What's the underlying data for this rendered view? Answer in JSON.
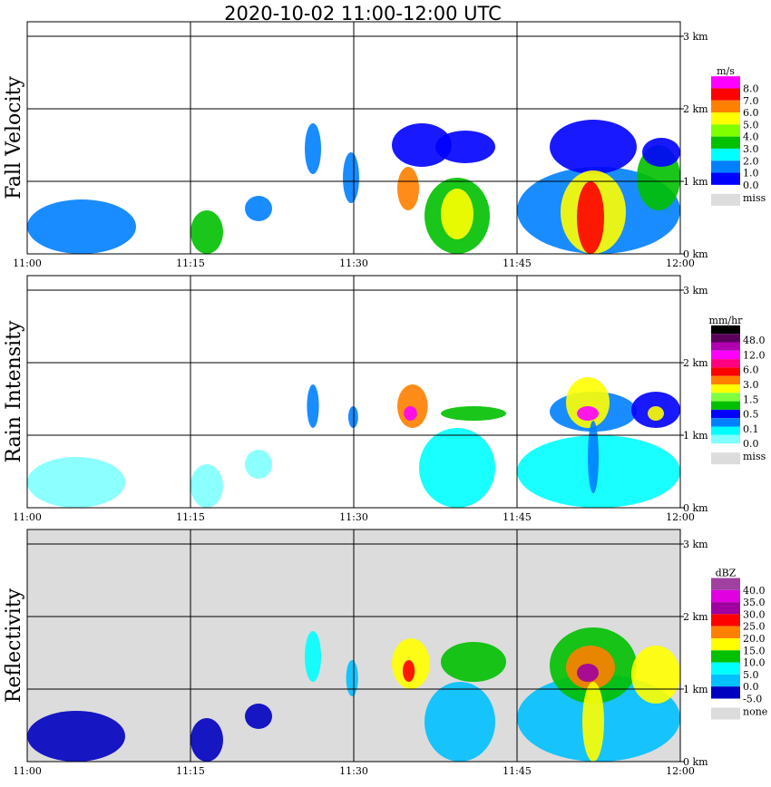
{
  "chart_data": {
    "type": "heatmap",
    "title": "2020-10-02   11:00-12:00 UTC",
    "x_ticks": [
      "11:00",
      "11:15",
      "11:30",
      "11:45",
      "12:00"
    ],
    "x_range_min": [
      0,
      60
    ],
    "y_ticks": [
      "0 km",
      "1 km",
      "2 km",
      "3 km"
    ],
    "y_range_km": [
      0,
      3.2
    ],
    "panels": [
      {
        "ylabel": "Fall Velocity",
        "unit": "m/s",
        "missing_label": "miss",
        "missing_color": "#dcdcdc",
        "background": "#ffffff",
        "levels": [
          "8.0",
          "7.0",
          "6.0",
          "5.0",
          "4.0",
          "3.0",
          "2.0",
          "1.0",
          "0.0"
        ],
        "thresholds": [
          8,
          7,
          6,
          5,
          4,
          3,
          2,
          1,
          0
        ],
        "colors": [
          "#ff00ff",
          "#ff0000",
          "#ff8000",
          "#ffff00",
          "#80ff00",
          "#00c000",
          "#00ffff",
          "#0080ff",
          "#0000ff"
        ],
        "cells": [
          [
            0,
            10,
            0,
            0.75,
            1.5
          ],
          [
            15,
            18,
            0,
            0.6,
            3
          ],
          [
            20,
            22.5,
            0.45,
            0.8,
            1.5
          ],
          [
            25.5,
            27,
            1.1,
            1.8,
            1.2
          ],
          [
            29,
            30.5,
            0.7,
            1.4,
            1.5
          ],
          [
            33.5,
            39,
            1.2,
            1.8,
            0.5
          ],
          [
            34,
            36,
            0.6,
            1.2,
            6.5
          ],
          [
            37.5,
            43,
            1.25,
            1.7,
            0.5
          ],
          [
            36.5,
            42.5,
            0,
            1.05,
            3.5
          ],
          [
            38,
            41,
            0.2,
            0.9,
            5.5
          ],
          [
            45,
            60,
            0,
            1.2,
            1.5
          ],
          [
            48,
            56,
            1.1,
            1.85,
            0.5
          ],
          [
            49,
            55,
            0,
            1.15,
            5.5
          ],
          [
            50.5,
            53,
            0,
            1,
            7.5
          ],
          [
            56,
            60,
            0.6,
            1.5,
            3.5
          ],
          [
            56.5,
            60,
            1.2,
            1.6,
            0.5
          ]
        ]
      },
      {
        "ylabel": "Rain Intensity",
        "unit": "mm/hr",
        "missing_label": "miss",
        "missing_color": "#dcdcdc",
        "background": "#ffffff",
        "levels": [
          "48.0",
          "12.0",
          "6.0",
          "3.0",
          "1.5",
          "0.5",
          "0.1",
          "0.0"
        ],
        "thresholds": [
          48,
          24,
          12,
          8,
          6,
          4,
          3,
          2,
          1.5,
          1,
          0.5,
          0.25,
          0.1,
          0
        ],
        "colors": [
          "#000000",
          "#5a005a",
          "#b000b0",
          "#ff00ff",
          "#ff0080",
          "#ff0000",
          "#ff8000",
          "#ffff00",
          "#80ff40",
          "#00c000",
          "#0000ff",
          "#0080ff",
          "#00ffff",
          "#80ffff"
        ],
        "cells": [
          [
            0,
            9,
            0,
            0.7,
            0.05
          ],
          [
            15,
            18,
            0,
            0.6,
            0.05
          ],
          [
            20,
            22.5,
            0.4,
            0.8,
            0.05
          ],
          [
            25.7,
            26.8,
            1.1,
            1.7,
            0.3
          ],
          [
            29.5,
            30.4,
            1.1,
            1.4,
            0.3
          ],
          [
            36,
            43,
            0,
            1.1,
            0.15
          ],
          [
            34,
            36.8,
            1.1,
            1.7,
            3
          ],
          [
            34.6,
            35.8,
            1.2,
            1.4,
            10
          ],
          [
            38,
            44,
            1.2,
            1.4,
            1
          ],
          [
            45,
            60,
            0,
            1.0,
            0.12
          ],
          [
            48,
            56,
            1.05,
            1.6,
            0.3
          ],
          [
            49.5,
            53.5,
            1.1,
            1.8,
            2
          ],
          [
            50.5,
            52.5,
            1.2,
            1.4,
            10
          ],
          [
            51.5,
            52.5,
            0.2,
            1.2,
            0.4
          ],
          [
            55.5,
            60,
            1.1,
            1.6,
            0.7
          ],
          [
            57,
            58.5,
            1.2,
            1.4,
            2.5
          ]
        ]
      },
      {
        "ylabel": "Reflectivity",
        "unit": "dBZ",
        "missing_label": "none",
        "missing_color": "#dcdcdc",
        "background": "#dcdcdc",
        "levels": [
          "40.0",
          "35.0",
          "30.0",
          "25.0",
          "20.0",
          "15.0",
          "10.0",
          "5.0",
          "0.0",
          "-5.0"
        ],
        "thresholds": [
          40,
          35,
          30,
          25,
          20,
          15,
          10,
          5,
          0,
          -5
        ],
        "colors": [
          "#a040a0",
          "#e000e0",
          "#a000a0",
          "#ff0000",
          "#ff8000",
          "#ffff00",
          "#00c000",
          "#00ffff",
          "#00c0ff",
          "#0000c0"
        ],
        "cells": [
          [
            0,
            9,
            0,
            0.7,
            -3
          ],
          [
            15,
            18,
            0,
            0.6,
            -3
          ],
          [
            20,
            22.5,
            0.45,
            0.8,
            -3
          ],
          [
            25.5,
            27,
            1.1,
            1.8,
            8
          ],
          [
            29.3,
            30.4,
            0.9,
            1.4,
            3
          ],
          [
            33.5,
            37,
            1.0,
            1.7,
            17
          ],
          [
            34.5,
            35.6,
            1.1,
            1.4,
            27
          ],
          [
            36.5,
            43,
            0,
            1.1,
            4
          ],
          [
            38,
            44,
            1.1,
            1.65,
            12
          ],
          [
            45,
            60,
            0,
            1.2,
            2
          ],
          [
            48,
            56,
            0.8,
            1.85,
            12
          ],
          [
            49.5,
            54,
            1.0,
            1.6,
            20
          ],
          [
            50.5,
            52.5,
            1.1,
            1.35,
            32
          ],
          [
            51,
            53,
            0,
            1.1,
            18
          ],
          [
            55.5,
            60,
            0.8,
            1.6,
            16
          ]
        ]
      }
    ]
  }
}
